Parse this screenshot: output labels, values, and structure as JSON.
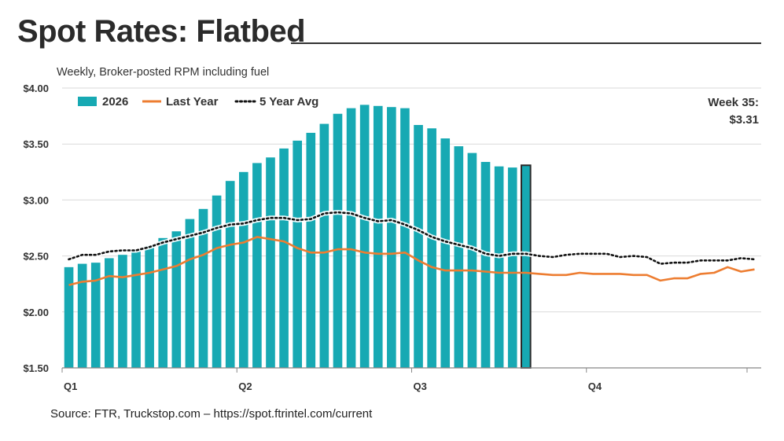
{
  "header": {
    "title": "Spot Rates: Flatbed",
    "subtitle": "Weekly, Broker-posted RPM including fuel"
  },
  "callout": {
    "line1": "Week 35:",
    "line2": "$3.31"
  },
  "source": "Source: FTR, Truckstop.com – https://spot.ftrintel.com/current",
  "colors": {
    "bars": "#17A9B3",
    "bar_current_outline": "#2a2a2a",
    "last_year": "#ED7D31",
    "avg5": "#111111",
    "grid": "#d9d9d9",
    "axis": "#888888"
  },
  "chart_data": {
    "type": "bar",
    "ylim": [
      1.5,
      4.0
    ],
    "y_ticks": [
      1.5,
      2.0,
      2.5,
      3.0,
      3.5,
      4.0
    ],
    "y_tick_labels": [
      "$1.50",
      "$2.00",
      "$2.50",
      "$3.00",
      "$3.50",
      "$4.00"
    ],
    "quarter_labels": [
      "Q1",
      "Q2",
      "Q3",
      "Q4"
    ],
    "quarter_start_weeks": [
      1,
      14,
      27,
      40
    ],
    "total_weeks": 52,
    "legend": {
      "bars": "2026",
      "last_year": "Last Year",
      "avg5": "5 Year Avg"
    },
    "highlight_week": 35,
    "series": [
      {
        "name": "2026",
        "kind": "bar",
        "weeks": [
          1,
          2,
          3,
          4,
          5,
          6,
          7,
          8,
          9,
          10,
          11,
          12,
          13,
          14,
          15,
          16,
          17,
          18,
          19,
          20,
          21,
          22,
          23,
          24,
          25,
          26,
          27,
          28,
          29,
          30,
          31,
          32,
          33,
          34,
          35
        ],
        "values": [
          2.4,
          2.43,
          2.44,
          2.48,
          2.51,
          2.55,
          2.59,
          2.66,
          2.72,
          2.83,
          2.92,
          3.04,
          3.17,
          3.25,
          3.33,
          3.38,
          3.46,
          3.53,
          3.6,
          3.68,
          3.77,
          3.82,
          3.85,
          3.84,
          3.83,
          3.82,
          3.67,
          3.64,
          3.55,
          3.48,
          3.42,
          3.34,
          3.3,
          3.29,
          3.31
        ]
      },
      {
        "name": "Last Year",
        "kind": "line",
        "weeks": [
          1,
          2,
          3,
          4,
          5,
          6,
          7,
          8,
          9,
          10,
          11,
          12,
          13,
          14,
          15,
          16,
          17,
          18,
          19,
          20,
          21,
          22,
          23,
          24,
          25,
          26,
          27,
          28,
          29,
          30,
          31,
          32,
          33,
          34,
          35,
          36,
          37,
          38,
          39,
          40,
          41,
          42,
          43,
          44,
          45,
          46,
          47,
          48,
          49,
          50,
          51,
          52
        ],
        "values": [
          2.24,
          2.27,
          2.28,
          2.32,
          2.31,
          2.33,
          2.35,
          2.38,
          2.41,
          2.47,
          2.51,
          2.57,
          2.6,
          2.62,
          2.67,
          2.65,
          2.63,
          2.57,
          2.53,
          2.53,
          2.56,
          2.56,
          2.53,
          2.52,
          2.52,
          2.53,
          2.46,
          2.4,
          2.37,
          2.37,
          2.37,
          2.36,
          2.35,
          2.35,
          2.35,
          2.34,
          2.33,
          2.33,
          2.35,
          2.34,
          2.34,
          2.34,
          2.33,
          2.33,
          2.28,
          2.3,
          2.3,
          2.34,
          2.35,
          2.4,
          2.36,
          2.38
        ]
      },
      {
        "name": "5 Year Avg",
        "kind": "line",
        "weeks": [
          1,
          2,
          3,
          4,
          5,
          6,
          7,
          8,
          9,
          10,
          11,
          12,
          13,
          14,
          15,
          16,
          17,
          18,
          19,
          20,
          21,
          22,
          23,
          24,
          25,
          26,
          27,
          28,
          29,
          30,
          31,
          32,
          33,
          34,
          35,
          36,
          37,
          38,
          39,
          40,
          41,
          42,
          43,
          44,
          45,
          46,
          47,
          48,
          49,
          50,
          51,
          52
        ],
        "values": [
          2.47,
          2.51,
          2.51,
          2.54,
          2.55,
          2.55,
          2.58,
          2.62,
          2.65,
          2.68,
          2.71,
          2.75,
          2.78,
          2.79,
          2.82,
          2.84,
          2.84,
          2.82,
          2.83,
          2.88,
          2.89,
          2.88,
          2.84,
          2.81,
          2.82,
          2.78,
          2.73,
          2.67,
          2.63,
          2.6,
          2.57,
          2.52,
          2.5,
          2.52,
          2.52,
          2.5,
          2.49,
          2.51,
          2.52,
          2.52,
          2.52,
          2.49,
          2.5,
          2.49,
          2.43,
          2.44,
          2.44,
          2.46,
          2.46,
          2.46,
          2.48,
          2.47
        ]
      }
    ]
  }
}
